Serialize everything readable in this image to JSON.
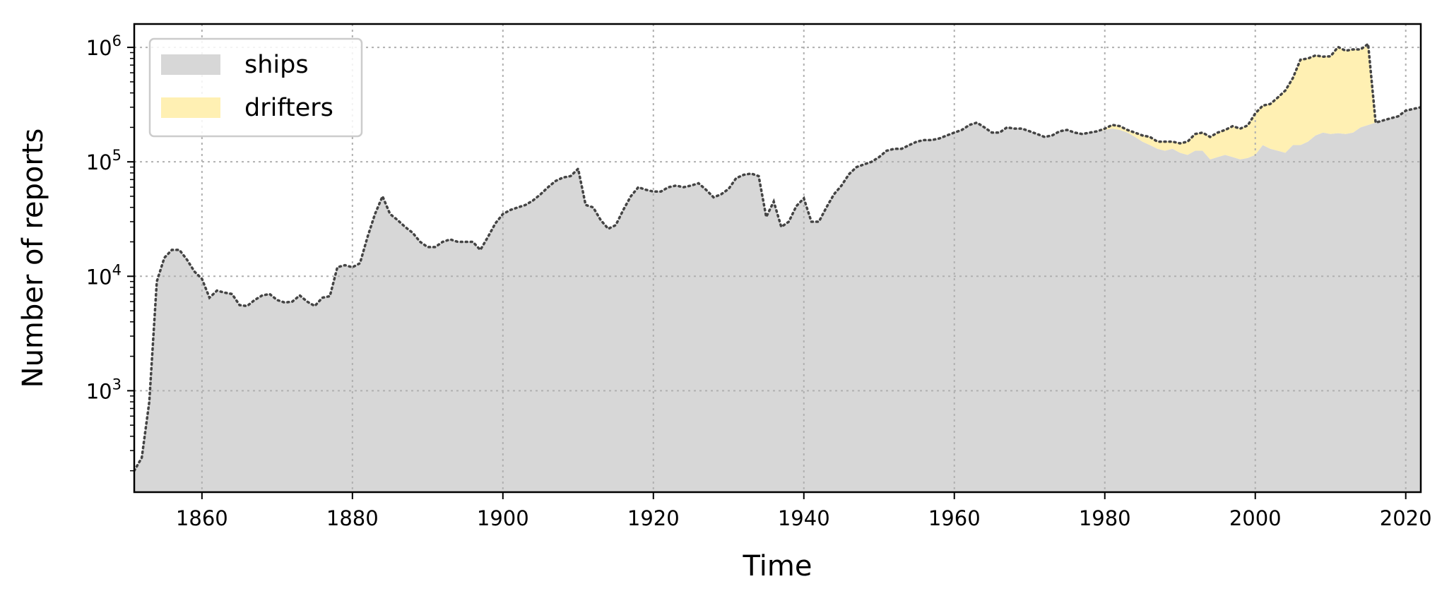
{
  "chart_data": {
    "type": "area",
    "xlabel": "Time",
    "ylabel": "Number of reports",
    "xlim": [
      1851,
      2022
    ],
    "ylim": [
      130,
      1600000
    ],
    "y_scale": "log",
    "grid": true,
    "legend_position": "top-left",
    "x_ticks": [
      1860,
      1880,
      1900,
      1920,
      1940,
      1960,
      1980,
      2000,
      2020
    ],
    "y_ticks": [
      {
        "value": 1000,
        "base": "10",
        "exp": "3"
      },
      {
        "value": 10000,
        "base": "10",
        "exp": "4"
      },
      {
        "value": 100000,
        "base": "10",
        "exp": "5"
      },
      {
        "value": 1000000,
        "base": "10",
        "exp": "6"
      }
    ],
    "colors": {
      "ships": "#d7d7d7",
      "drifters": "#fff0b3",
      "total_line": "#444444",
      "grid": "#b0b0b0"
    },
    "legend": [
      {
        "key": "ships",
        "label": "ships"
      },
      {
        "key": "drifters",
        "label": "drifters"
      }
    ],
    "x": [
      1851,
      1852,
      1853,
      1854,
      1855,
      1856,
      1857,
      1858,
      1859,
      1860,
      1861,
      1862,
      1863,
      1864,
      1865,
      1866,
      1867,
      1868,
      1869,
      1870,
      1871,
      1872,
      1873,
      1874,
      1875,
      1876,
      1877,
      1878,
      1879,
      1880,
      1881,
      1882,
      1883,
      1884,
      1885,
      1886,
      1887,
      1888,
      1889,
      1890,
      1891,
      1892,
      1893,
      1894,
      1895,
      1896,
      1897,
      1898,
      1899,
      1900,
      1901,
      1902,
      1903,
      1904,
      1905,
      1906,
      1907,
      1908,
      1909,
      1910,
      1911,
      1912,
      1913,
      1914,
      1915,
      1916,
      1917,
      1918,
      1919,
      1920,
      1921,
      1922,
      1923,
      1924,
      1925,
      1926,
      1927,
      1928,
      1929,
      1930,
      1931,
      1932,
      1933,
      1934,
      1935,
      1936,
      1937,
      1938,
      1939,
      1940,
      1941,
      1942,
      1943,
      1944,
      1945,
      1946,
      1947,
      1948,
      1949,
      1950,
      1951,
      1952,
      1953,
      1954,
      1955,
      1956,
      1957,
      1958,
      1959,
      1960,
      1961,
      1962,
      1963,
      1964,
      1965,
      1966,
      1967,
      1968,
      1969,
      1970,
      1971,
      1972,
      1973,
      1974,
      1975,
      1976,
      1977,
      1978,
      1979,
      1980,
      1981,
      1982,
      1983,
      1984,
      1985,
      1986,
      1987,
      1988,
      1989,
      1990,
      1991,
      1992,
      1993,
      1994,
      1995,
      1996,
      1997,
      1998,
      1999,
      2000,
      2001,
      2002,
      2003,
      2004,
      2005,
      2006,
      2007,
      2008,
      2009,
      2010,
      2011,
      2012,
      2013,
      2014,
      2015,
      2016,
      2017,
      2018,
      2019,
      2020,
      2021,
      2022
    ],
    "series": [
      {
        "name": "ships",
        "values": [
          200,
          260,
          800,
          9000,
          14500,
          17000,
          17000,
          14000,
          11000,
          9500,
          6500,
          7500,
          7200,
          7000,
          5600,
          5500,
          6200,
          6800,
          7000,
          6200,
          5900,
          6000,
          6800,
          6000,
          5500,
          6500,
          6700,
          12000,
          12500,
          12000,
          13000,
          22000,
          35000,
          50000,
          35000,
          31000,
          27000,
          24000,
          20000,
          18000,
          18000,
          20000,
          21000,
          20000,
          20000,
          20000,
          17000,
          22000,
          29000,
          35000,
          38000,
          40000,
          42000,
          46000,
          52000,
          60000,
          68000,
          73000,
          75000,
          87000,
          42000,
          40000,
          31000,
          26000,
          28000,
          38000,
          50000,
          60000,
          57000,
          55000,
          55000,
          60000,
          62000,
          60000,
          62000,
          65000,
          57000,
          49000,
          52000,
          58000,
          72000,
          77000,
          79000,
          75000,
          33000,
          45000,
          27000,
          30000,
          41000,
          48000,
          30000,
          30000,
          40000,
          52000,
          62000,
          78000,
          90000,
          95000,
          100000,
          110000,
          125000,
          130000,
          130000,
          140000,
          150000,
          155000,
          155000,
          160000,
          170000,
          180000,
          190000,
          210000,
          220000,
          200000,
          180000,
          180000,
          200000,
          195000,
          195000,
          185000,
          175000,
          165000,
          170000,
          185000,
          190000,
          180000,
          175000,
          180000,
          185000,
          190000,
          195000,
          190000,
          180000,
          165000,
          150000,
          140000,
          130000,
          125000,
          130000,
          120000,
          115000,
          125000,
          125000,
          105000,
          110000,
          115000,
          110000,
          105000,
          108000,
          115000,
          140000,
          130000,
          125000,
          120000,
          140000,
          140000,
          150000,
          170000,
          180000,
          175000,
          178000,
          175000,
          180000,
          200000,
          210000,
          220000,
          230000,
          240000,
          250000,
          280000,
          290000,
          300000
        ]
      },
      {
        "name": "drifters",
        "values": [
          0,
          0,
          0,
          0,
          0,
          0,
          0,
          0,
          0,
          0,
          0,
          0,
          0,
          0,
          0,
          0,
          0,
          0,
          0,
          0,
          0,
          0,
          0,
          0,
          0,
          0,
          0,
          0,
          0,
          0,
          0,
          0,
          0,
          0,
          0,
          0,
          0,
          0,
          0,
          0,
          0,
          0,
          0,
          0,
          0,
          0,
          0,
          0,
          0,
          0,
          0,
          0,
          0,
          0,
          0,
          0,
          0,
          0,
          0,
          0,
          0,
          0,
          0,
          0,
          0,
          0,
          0,
          0,
          0,
          0,
          0,
          0,
          0,
          0,
          0,
          0,
          0,
          0,
          0,
          0,
          0,
          0,
          0,
          0,
          0,
          0,
          0,
          0,
          0,
          0,
          0,
          0,
          0,
          0,
          0,
          0,
          0,
          0,
          0,
          0,
          0,
          0,
          0,
          0,
          0,
          0,
          0,
          0,
          0,
          0,
          0,
          0,
          0,
          0,
          0,
          0,
          0,
          0,
          0,
          0,
          0,
          0,
          0,
          0,
          0,
          0,
          0,
          0,
          0,
          5000,
          15000,
          15000,
          10000,
          15000,
          20000,
          25000,
          20000,
          25000,
          20000,
          25000,
          35000,
          50000,
          55000,
          60000,
          70000,
          75000,
          95000,
          90000,
          100000,
          150000,
          170000,
          190000,
          240000,
          300000,
          400000,
          640000,
          650000,
          680000,
          650000,
          660000,
          830000,
          760000,
          780000,
          760000,
          860000,
          0,
          0,
          0,
          0,
          0,
          0,
          0
        ]
      }
    ]
  }
}
